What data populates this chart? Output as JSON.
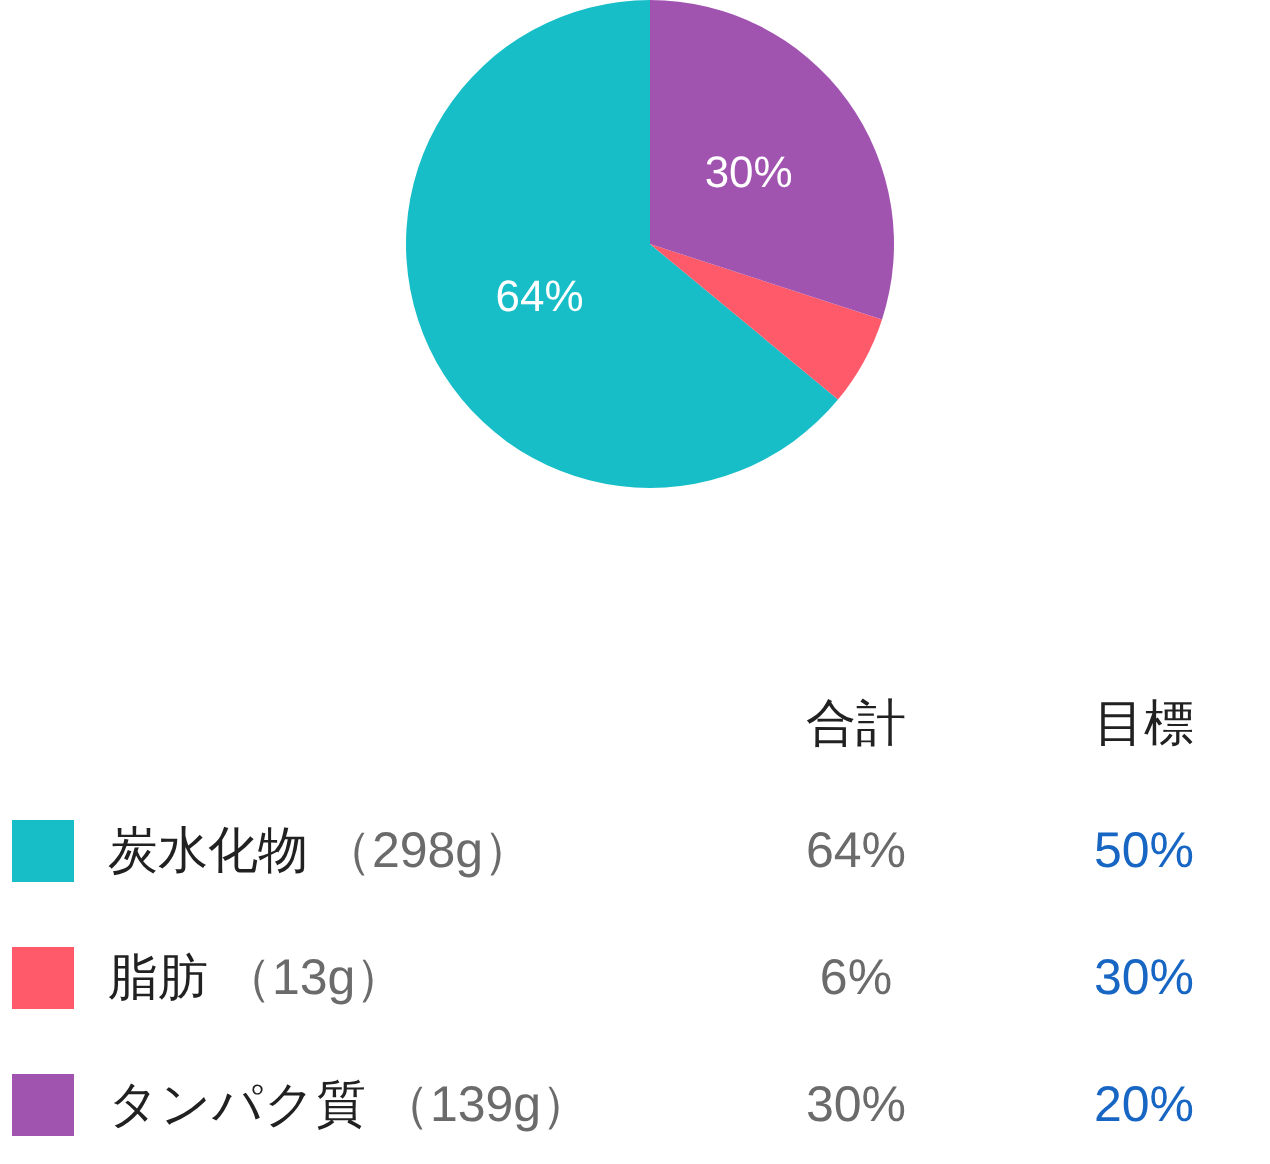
{
  "chart_data": {
    "type": "pie",
    "categories": [
      "炭水化物 （298g）",
      "脂肪 （13g）",
      "タンパク質 （139g）"
    ],
    "values": [
      64,
      6,
      30
    ],
    "colors": [
      "#17bec8",
      "#fe5a6a",
      "#a153b0"
    ],
    "value_labels": [
      "64%",
      "6%",
      "30%"
    ],
    "annotations": [
      "合計",
      "目標",
      "50%",
      "30%",
      "20%"
    ],
    "legend": "bottom"
  }
}
